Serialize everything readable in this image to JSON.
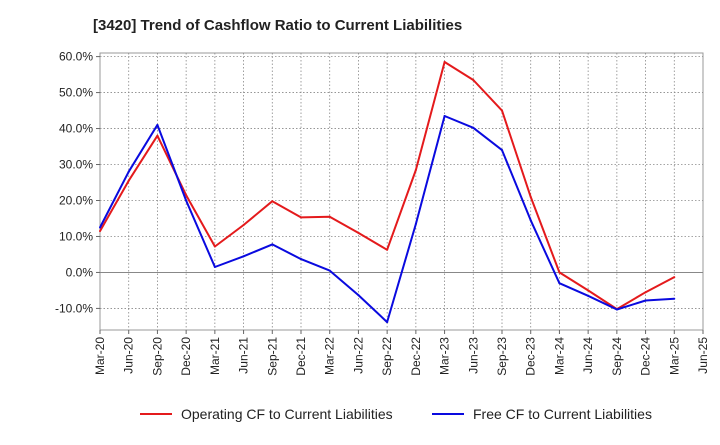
{
  "chart_data": {
    "type": "line",
    "title": "[3420]  Trend of Cashflow Ratio to Current Liabilities",
    "xlabel": "",
    "ylabel": "",
    "categories": [
      "Mar-20",
      "Jun-20",
      "Sep-20",
      "Dec-20",
      "Mar-21",
      "Jun-21",
      "Sep-21",
      "Dec-21",
      "Mar-22",
      "Jun-22",
      "Sep-22",
      "Dec-22",
      "Mar-23",
      "Jun-23",
      "Sep-23",
      "Dec-23",
      "Mar-24",
      "Jun-24",
      "Sep-24",
      "Dec-24",
      "Mar-25",
      "Jun-25"
    ],
    "ylim": [
      -16,
      61
    ],
    "yticks": [
      60,
      50,
      40,
      30,
      20,
      10,
      0,
      -10
    ],
    "ytick_labels": [
      "60.0%",
      "50.0%",
      "40.0%",
      "30.0%",
      "20.0%",
      "10.0%",
      "0.0%",
      "-10.0%"
    ],
    "grid": true,
    "legend_position": "bottom",
    "series": [
      {
        "name": "Operating CF to Current Liabilities",
        "color": "#e41a1c",
        "values": [
          11.5,
          25.5,
          38.0,
          21.5,
          7.2,
          13.2,
          19.8,
          15.3,
          15.5,
          11.0,
          6.3,
          28.5,
          58.5,
          53.5,
          45.0,
          21.0,
          0.0,
          -5.0,
          -10.2,
          -5.5,
          -1.3,
          null
        ]
      },
      {
        "name": "Free CF to Current Liabilities",
        "color": "#0a0adf",
        "values": [
          12.5,
          28.0,
          41.0,
          20.0,
          1.5,
          4.5,
          7.8,
          3.7,
          0.5,
          -6.3,
          -13.8,
          13.5,
          43.5,
          40.2,
          34.0,
          14.5,
          -3.0,
          -6.5,
          -10.3,
          -7.8,
          -7.3,
          null
        ]
      }
    ]
  }
}
